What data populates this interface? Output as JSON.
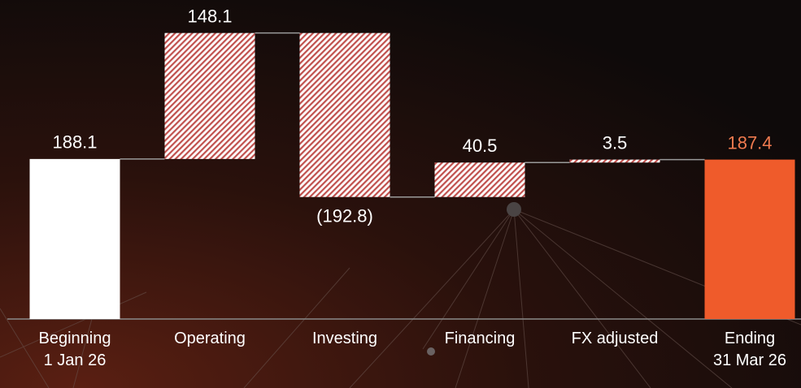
{
  "chart_data": {
    "type": "waterfall",
    "categories": [
      "Beginning\n1 Jan 26",
      "Operating",
      "Investing",
      "Financing",
      "FX adjusted",
      "Ending\n31 Mar 26"
    ],
    "values": [
      188.1,
      148.1,
      -192.8,
      40.5,
      3.5,
      187.4
    ],
    "value_labels": [
      "188.1",
      "148.1",
      "(192.8)",
      "40.5",
      "3.5",
      "187.4"
    ],
    "totals": [
      true,
      false,
      false,
      false,
      false,
      true
    ],
    "colors": {
      "start": "#ffffff",
      "end": "#ef5b2b",
      "change": "#c0504d",
      "end_label": "#f07a4f"
    },
    "ylim": [
      0,
      375
    ]
  }
}
